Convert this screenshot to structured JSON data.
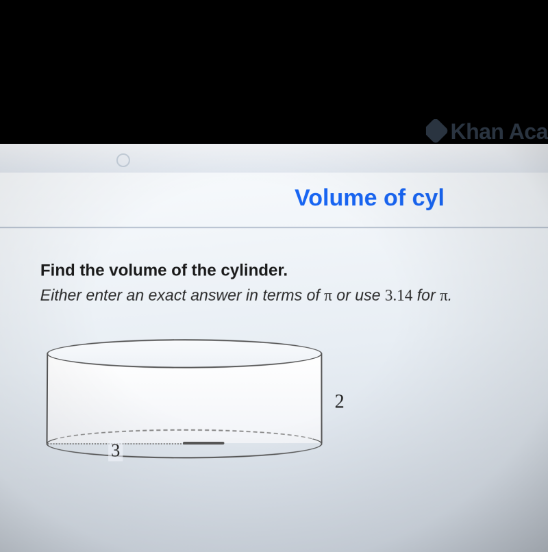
{
  "header": {
    "brand_partial": "Khan Aca",
    "page_title_partial": "Volume of cyl",
    "title_color": "#1865f2"
  },
  "question": {
    "prompt": "Find the volume of the cylinder.",
    "hint_prefix": "Either enter an exact answer in terms of ",
    "hint_mid": " or use ",
    "hint_value": "3.14",
    "hint_suffix": " for ",
    "hint_end": ".",
    "pi_symbol": "π"
  },
  "cylinder": {
    "type": "diagram",
    "shape": "cylinder",
    "radius_label": "3",
    "height_label": "2",
    "stroke_color": "#555555",
    "dashed_color": "#888888",
    "fill_top": "#f8fafc",
    "fill_side": "#f2f4f8",
    "label_fontsize": 26,
    "view": "oblique"
  },
  "colors": {
    "page_bg": "#000000",
    "screen_bg_light": "#fafcfe",
    "screen_bg_dark": "#d0d8e2",
    "text_primary": "#1a1a1a",
    "divider": "#b8c2d0"
  }
}
